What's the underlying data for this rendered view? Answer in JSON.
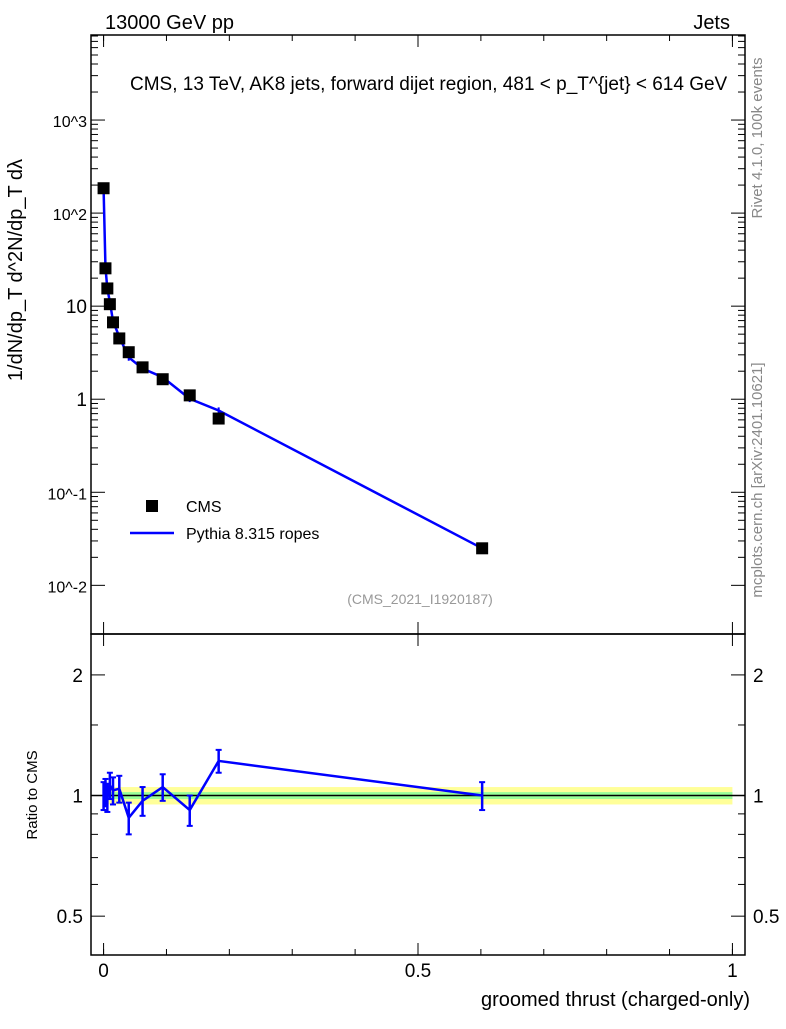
{
  "chart_data": {
    "type": "line",
    "header_left": "13000 GeV pp",
    "header_right": "Jets",
    "title": "CMS, 13 TeV, AK8 jets, forward dijet region, 481 < p_T^{jet} < 614 GeV",
    "ylabel": "1/dN/dp_T  d^2N/dp_T dλ",
    "xlabel": "groomed thrust (charged-only)",
    "ratio_ylabel": "Ratio to CMS",
    "side_label_top": "Rivet 4.1.0,  100k events",
    "side_label_bottom": "mcplots.cern.ch [arXiv:2401.10621]",
    "analysis_id": "(CMS_2021_I1920187)",
    "xlim": [
      -0.02,
      1.02
    ],
    "ylim": [
      0.003,
      8200
    ],
    "ratio_ylim": [
      0.4,
      2.53
    ],
    "yscale": "log",
    "x_ticks": [
      "0",
      "0.5",
      "1"
    ],
    "y_ticks": [
      "10^-2",
      "10^-1",
      "1",
      "10",
      "10^2",
      "10^3"
    ],
    "ratio_ticks": [
      "0.5",
      "1",
      "2"
    ],
    "legend_position": "middle-left",
    "x": [
      0.0,
      0.003,
      0.006,
      0.01,
      0.015,
      0.025,
      0.04,
      0.062,
      0.094,
      0.137,
      0.183,
      0.602
    ],
    "series": [
      {
        "name": "CMS",
        "color": "#000000",
        "values": [
          185,
          25.5,
          15.5,
          10.5,
          6.7,
          4.5,
          3.2,
          2.2,
          1.64,
          1.1,
          0.62,
          0.025
        ]
      },
      {
        "name": "Pythia 8.315 ropes",
        "color": "#0000ff",
        "ratio": [
          1.0,
          1.02,
          0.99,
          1.06,
          1.03,
          1.04,
          0.88,
          0.97,
          1.05,
          0.92,
          1.22,
          1.0
        ],
        "ratio_err": 0.08
      }
    ]
  }
}
